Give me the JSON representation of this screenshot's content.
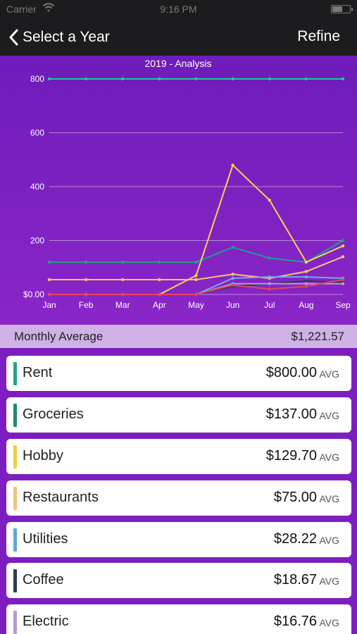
{
  "status": {
    "carrier": "Carrier",
    "time": "9:16 PM"
  },
  "nav": {
    "back_label": "Select a Year",
    "refine_label": "Refine"
  },
  "chart_data": {
    "type": "line",
    "title": "2019 - Analysis",
    "categories": [
      "Jan",
      "Feb",
      "Mar",
      "Apr",
      "May",
      "Jun",
      "Jul",
      "Aug",
      "Sep"
    ],
    "y_ticks": [
      "$0.00",
      "200",
      "400",
      "600",
      "800"
    ],
    "ylim": [
      0,
      800
    ],
    "grid": true,
    "series": [
      {
        "color": "#27c4a0",
        "values": [
          800,
          800,
          800,
          800,
          800,
          800,
          800,
          800,
          800
        ]
      },
      {
        "color": "#1e9f8c",
        "values": [
          120,
          120,
          120,
          120,
          120,
          175,
          135,
          120,
          200
        ]
      },
      {
        "color": "#f3d24f",
        "values": [
          0,
          0,
          0,
          0,
          70,
          480,
          350,
          120,
          180
        ]
      },
      {
        "color": "#f5c27a",
        "values": [
          55,
          55,
          55,
          55,
          55,
          75,
          60,
          85,
          140
        ]
      },
      {
        "color": "#6aaee8",
        "values": [
          0,
          0,
          0,
          0,
          0,
          60,
          65,
          65,
          60
        ]
      },
      {
        "color": "#2c3e50",
        "values": [
          0,
          0,
          0,
          0,
          0,
          30,
          40,
          50,
          45
        ]
      },
      {
        "color": "#b59ad8",
        "values": [
          0,
          0,
          0,
          0,
          0,
          40,
          40,
          40,
          40
        ]
      },
      {
        "color": "#e0475a",
        "values": [
          0,
          0,
          0,
          0,
          0,
          35,
          20,
          30,
          55
        ]
      }
    ]
  },
  "summary": {
    "label": "Monthly Average",
    "value": "$1,221.57"
  },
  "categories": [
    {
      "name": "Rent",
      "amount": "$800.00",
      "suffix": "AVG",
      "color": "#27a589"
    },
    {
      "name": "Groceries",
      "amount": "$137.00",
      "suffix": "AVG",
      "color": "#1e8a73"
    },
    {
      "name": "Hobby",
      "amount": "$129.70",
      "suffix": "AVG",
      "color": "#f2cf3c"
    },
    {
      "name": "Restaurants",
      "amount": "$75.00",
      "suffix": "AVG",
      "color": "#f5c27a"
    },
    {
      "name": "Utilities",
      "amount": "$28.22",
      "suffix": "AVG",
      "color": "#5aa8de"
    },
    {
      "name": "Coffee",
      "amount": "$18.67",
      "suffix": "AVG",
      "color": "#2c3e50"
    },
    {
      "name": "Electric",
      "amount": "$16.76",
      "suffix": "AVG",
      "color": "#b59ad8"
    }
  ],
  "icons": {
    "back": "chevron-left-icon",
    "wifi": "wifi-icon",
    "battery": "battery-icon"
  }
}
